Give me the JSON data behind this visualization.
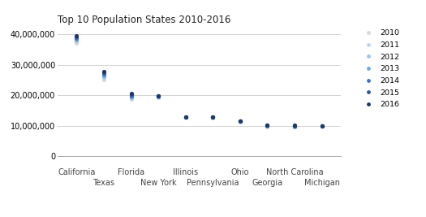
{
  "title": "Top 10 Population States 2010-2016",
  "states": [
    "California",
    "Texas",
    "Florida",
    "New York",
    "Illinois",
    "Pennsylvania",
    "Ohio",
    "Georgia",
    "North Carolina",
    "Michigan"
  ],
  "years": [
    2010,
    2011,
    2012,
    2013,
    2014,
    2015,
    2016
  ],
  "populations": {
    "California": [
      37253956,
      37691912,
      38041430,
      38431393,
      38802500,
      39144818,
      39536653
    ],
    "Texas": [
      25145561,
      25674681,
      26059203,
      26448193,
      26956958,
      27469114,
      27862596
    ],
    "Florida": [
      18801310,
      19057542,
      19317568,
      19552860,
      19893297,
      20271272,
      20612439
    ],
    "New York": [
      19378102,
      19465197,
      19570261,
      19651127,
      19746227,
      19795791,
      19745289
    ],
    "Illinois": [
      12830632,
      12869257,
      12901563,
      12895129,
      12880580,
      12859995,
      12801539
    ],
    "Pennsylvania": [
      12702379,
      12742886,
      12763536,
      12773801,
      12787209,
      12802503,
      12784227
    ],
    "Ohio": [
      11536504,
      11544951,
      11553910,
      11570022,
      11594163,
      11613423,
      11614373
    ],
    "Georgia": [
      9687653,
      9812280,
      9919945,
      9994759,
      10097343,
      10214860,
      10310371
    ],
    "North Carolina": [
      9535483,
      9656401,
      9748364,
      9848060,
      9943964,
      10042802,
      10146788
    ],
    "Michigan": [
      9883640,
      9876187,
      9895622,
      9895571,
      9909877,
      9922576,
      9928300
    ]
  },
  "year_colors": {
    "2010": "#d9d9d9",
    "2011": "#bdd7ee",
    "2012": "#9dc3e6",
    "2013": "#6fa8dc",
    "2014": "#4472c4",
    "2015": "#2f5597",
    "2016": "#1f3864"
  },
  "ylim": [
    0,
    42000000
  ],
  "yticks": [
    0,
    10000000,
    20000000,
    30000000,
    40000000
  ],
  "background_color": "#ffffff",
  "title_fontsize": 8.5,
  "tick_fontsize": 7,
  "label_fontsize": 7
}
